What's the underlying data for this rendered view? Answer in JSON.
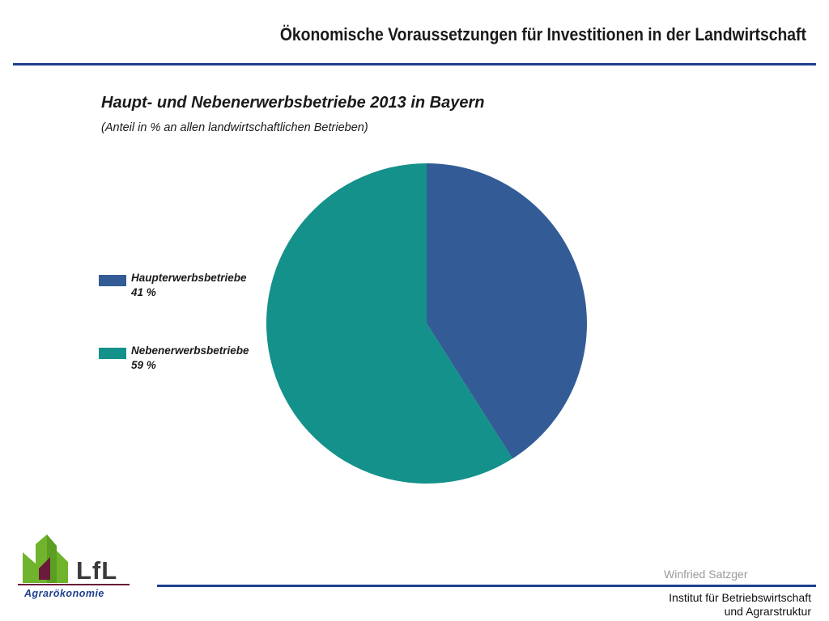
{
  "slide": {
    "title": "Ökonomische Voraussetzungen für Investitionen in der Landwirtschaft"
  },
  "chart_data": {
    "type": "pie",
    "title": "Haupt- und Nebenerwerbsbetriebe 2013 in Bayern",
    "subtitle": "(Anteil in % an allen landwirtschaftlichen Betrieben)",
    "legend_position": "left",
    "slices": [
      {
        "label": "Haupterwerbsbetriebe",
        "value": 41,
        "value_label": "41 %",
        "color": "#335c96"
      },
      {
        "label": "Nebenerwerbsbetriebe",
        "value": 59,
        "value_label": "59 %",
        "color": "#14918a"
      }
    ]
  },
  "footer": {
    "author": "Winfried Satzger",
    "institute_line1": "Institut für Betriebswirtschaft",
    "institute_line2": "und Agrarstruktur"
  },
  "logo": {
    "wordmark": "LfL",
    "subtitle": "Agrarökonomie",
    "colors": {
      "green": "#6fb42c",
      "maroon": "#6a1a3a",
      "blue": "#1f3f8f"
    }
  },
  "colors": {
    "accent_rule": "#1f3f8f"
  }
}
